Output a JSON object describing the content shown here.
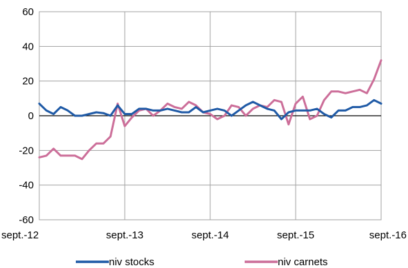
{
  "chart_data": {
    "type": "line",
    "title": "",
    "xlabel": "",
    "ylabel": "",
    "ylim": [
      -60,
      60
    ],
    "y_ticks": [
      -60,
      -40,
      -20,
      0,
      20,
      40,
      60
    ],
    "x_tick_labels": [
      "sept.-12",
      "sept.-13",
      "sept.-14",
      "sept.-15",
      "sept.-16"
    ],
    "x_start": "2012-09",
    "x_end": "2016-09",
    "grid": true,
    "legend_position": "bottom",
    "series": [
      {
        "name": "niv stocks",
        "color": "#1f5aa6",
        "values": [
          7,
          3,
          1,
          5,
          3,
          0,
          0,
          1,
          2,
          1.5,
          0,
          6,
          1,
          1,
          4,
          4,
          3,
          3,
          4,
          3,
          2,
          2,
          5,
          2,
          3,
          4,
          3,
          0,
          3,
          6,
          8,
          6,
          4,
          3,
          -2,
          2,
          3,
          3,
          3,
          4,
          1,
          -1,
          3,
          3,
          5,
          5,
          6,
          9,
          7
        ]
      },
      {
        "name": "niv carnets",
        "color": "#cc6e99",
        "values": [
          -24,
          -23,
          -19,
          -23,
          -23,
          -23,
          -25,
          -20,
          -16,
          -16,
          -12,
          7,
          -6,
          -1,
          3,
          4,
          0,
          3,
          7,
          5,
          4,
          8,
          6,
          2,
          1,
          -2,
          0,
          6,
          5,
          0,
          4,
          6,
          5,
          9,
          8,
          -5,
          7,
          11,
          -2,
          0,
          9,
          14,
          14,
          13,
          14,
          15,
          13,
          21,
          32
        ]
      }
    ]
  }
}
